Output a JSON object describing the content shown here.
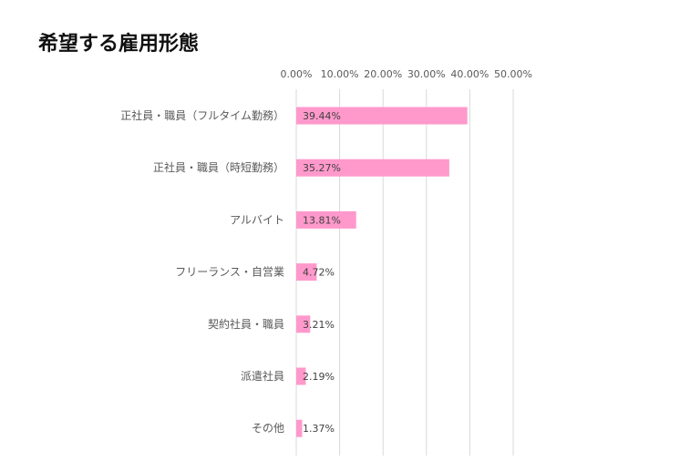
{
  "chart_data": {
    "type": "bar",
    "orientation": "horizontal",
    "title": "希望する雇用形態",
    "categories": [
      "正社員・職員（フルタイム勤務）",
      "正社員・職員（時短勤務）",
      "アルバイト",
      "フリーランス・自営業",
      "契約社員・職員",
      "派遣社員",
      "その他"
    ],
    "values": [
      39.44,
      35.27,
      13.81,
      4.72,
      3.21,
      2.19,
      1.37
    ],
    "data_labels": [
      "39.44%",
      "35.27%",
      "13.81%",
      "4.72%",
      "3.21%",
      "2.19%",
      "1.37%"
    ],
    "xticks": [
      0,
      10,
      20,
      30,
      40,
      50
    ],
    "xtick_labels": [
      "0.00%",
      "10.00%",
      "20.00%",
      "30.00%",
      "40.00%",
      "50.00%"
    ],
    "xlim": [
      0,
      50
    ],
    "xaxis_position": "top",
    "grid": true,
    "bar_color": "#ff99cc",
    "xlabel": "",
    "ylabel": ""
  }
}
